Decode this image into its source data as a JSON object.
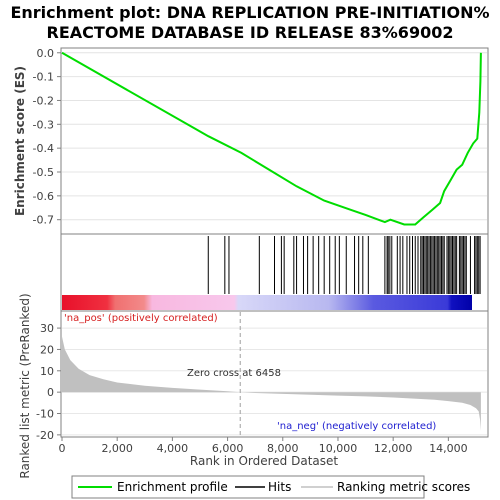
{
  "title_line1": "Enrichment plot: DNA REPLICATION PRE-INITIATION%",
  "title_line2": "REACTOME DATABASE ID RELEASE 83%69002",
  "colors": {
    "es_line": "#00dd00",
    "hits": "#000000",
    "ranking": "#c0c0c0",
    "pos_label": "#d62020",
    "neg_label": "#2020d0"
  },
  "chart_data": [
    {
      "type": "line",
      "ylabel": "Enrichment score (ES)",
      "ylim": [
        -0.76,
        0.02
      ],
      "yticks": [
        0.0,
        -0.1,
        -0.2,
        -0.3,
        -0.4,
        -0.5,
        -0.6,
        -0.7
      ],
      "ytick_labels": [
        "0.0",
        "-0.1",
        "-0.2",
        "-0.3",
        "-0.4",
        "-0.5",
        "-0.6",
        "-0.7"
      ],
      "xlim": [
        0,
        15400
      ],
      "grid": true,
      "series": [
        {
          "x": [
            0,
            5300,
            6500,
            7500,
            8500,
            9500,
            10500,
            11000,
            11700,
            11900,
            12400,
            12800,
            13100,
            13400,
            13700,
            13850,
            14100,
            14300,
            14500,
            14700,
            14900,
            15050,
            15120,
            15160,
            15180
          ],
          "y": [
            0.0,
            -0.35,
            -0.42,
            -0.49,
            -0.56,
            -0.62,
            -0.66,
            -0.68,
            -0.71,
            -0.7,
            -0.72,
            -0.72,
            -0.69,
            -0.66,
            -0.63,
            -0.58,
            -0.53,
            -0.49,
            -0.47,
            -0.42,
            -0.38,
            -0.36,
            -0.25,
            -0.12,
            0.0
          ]
        }
      ]
    },
    {
      "type": "scatter",
      "series_label": "Hits",
      "hit_positions": [
        5300,
        5900,
        6050,
        7150,
        7700,
        7950,
        8050,
        8400,
        8500,
        8750,
        8900,
        9100,
        9300,
        9500,
        9700,
        9900,
        10050,
        10300,
        10600,
        10750,
        10900,
        11100,
        11700,
        11780,
        11820,
        11880,
        11950,
        12150,
        12250,
        12350,
        12500,
        12600,
        12700,
        12800,
        12900,
        13000,
        13050,
        13100,
        13150,
        13200,
        13250,
        13300,
        13350,
        13400,
        13450,
        13500,
        13550,
        13600,
        13650,
        13700,
        13750,
        13800,
        13850,
        13950,
        14000,
        14050,
        14100,
        14150,
        14200,
        14250,
        14300,
        14400,
        14450,
        14500,
        14550,
        14600,
        14650,
        14800,
        14950,
        15000,
        15050,
        15100,
        15150
      ]
    },
    {
      "type": "area",
      "ylabel": "Ranked list metric (PreRanked)",
      "xlabel": "Rank in Ordered Dataset",
      "ylim": [
        -21,
        38
      ],
      "yticks": [
        30,
        20,
        10,
        0,
        -10,
        -20
      ],
      "ytick_labels": [
        "30",
        "20",
        "10",
        "0",
        "-10",
        "-20"
      ],
      "xlim": [
        0,
        15400
      ],
      "xticks": [
        0,
        2000,
        4000,
        6000,
        8000,
        10000,
        12000,
        14000
      ],
      "xtick_labels": [
        "0",
        "2,000",
        "4,000",
        "6,000",
        "8,000",
        "10,000",
        "12,000",
        "14,000"
      ],
      "zero_cross": 6458,
      "zero_cross_label": "Zero cross at 6458",
      "pos_label": "'na_pos' (positively correlated)",
      "neg_label": "'na_neg' (negatively correlated)",
      "series": [
        {
          "x": [
            0,
            100,
            300,
            600,
            1000,
            1500,
            2000,
            3000,
            4000,
            5000,
            6000,
            6458,
            7000,
            8000,
            9000,
            10000,
            11000,
            12000,
            13000,
            13500,
            14000,
            14500,
            14800,
            15000,
            15100,
            15150,
            15180
          ],
          "y": [
            26,
            20,
            15,
            11,
            8,
            6,
            4.5,
            3,
            2,
            1.2,
            0.4,
            0,
            -0.4,
            -0.8,
            -1.2,
            -1.6,
            -2.0,
            -2.5,
            -3.2,
            -3.6,
            -4.2,
            -5.0,
            -6.0,
            -7.5,
            -9,
            -13,
            -18
          ]
        }
      ]
    }
  ],
  "legend": {
    "items": [
      {
        "label": "Enrichment profile"
      },
      {
        "label": "Hits"
      },
      {
        "label": "Ranking metric scores"
      }
    ]
  }
}
